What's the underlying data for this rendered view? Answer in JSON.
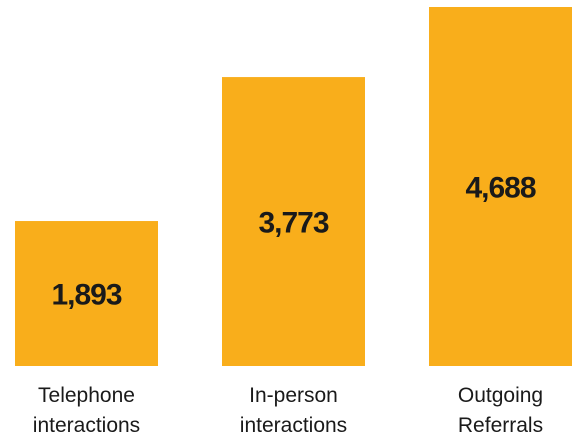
{
  "chart_data": {
    "type": "bar",
    "categories": [
      [
        "Telephone",
        "interactions"
      ],
      [
        "In-person",
        "interactions"
      ],
      [
        "Outgoing",
        "Referrals"
      ]
    ],
    "values": [
      1893,
      3773,
      4688
    ],
    "value_labels": [
      "1,893",
      "3,773",
      "4,688"
    ],
    "title": "",
    "xlabel": "",
    "ylabel": "",
    "ylim": [
      0,
      4688
    ],
    "grid": false,
    "bar_color": "#f9ae1b",
    "text_color": "#1a1a1a",
    "background": "#ffffff"
  }
}
